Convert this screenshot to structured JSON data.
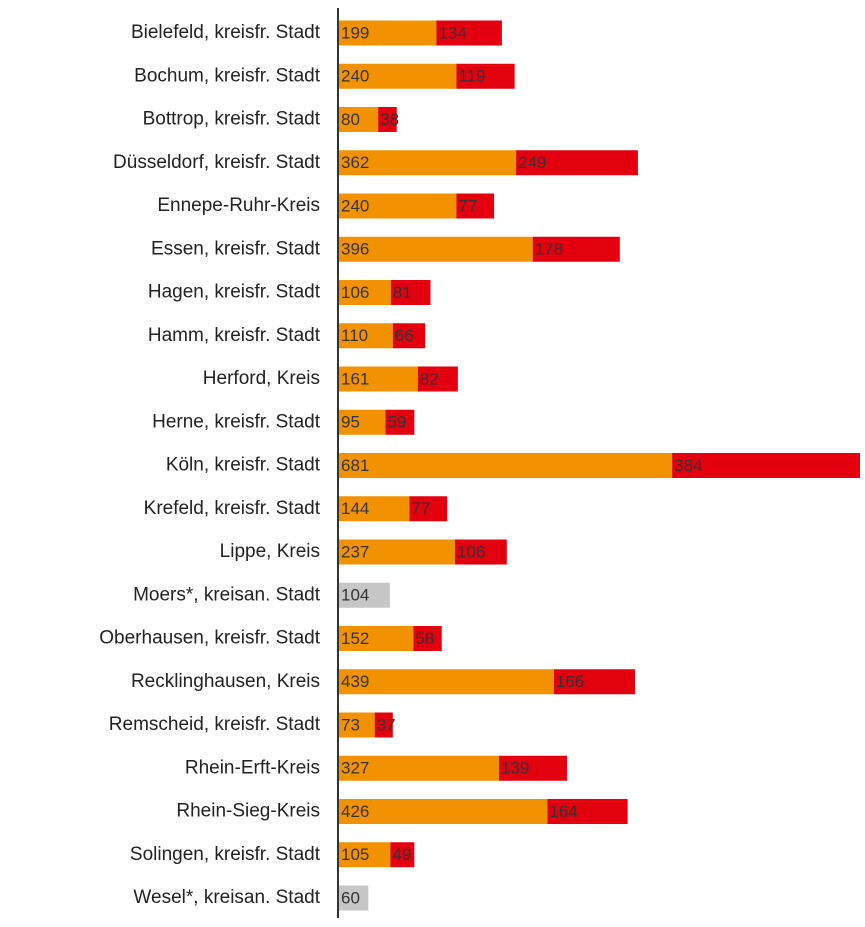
{
  "chart_data": {
    "type": "stacked-bar-horizontal",
    "categories": [
      "Bielefeld, kreisfr. Stadt",
      "Bochum, kreisfr. Stadt",
      "Bottrop, kreisfr. Stadt",
      "Düsseldorf, kreisfr. Stadt",
      "Ennepe-Ruhr-Kreis",
      "Essen, kreisfr. Stadt",
      "Hagen, kreisfr. Stadt",
      "Hamm, kreisfr. Stadt",
      "Herford, Kreis",
      "Herne, kreisfr. Stadt",
      "Köln, kreisfr. Stadt",
      "Krefeld, kreisfr. Stadt",
      "Lippe, Kreis",
      "Moers*, kreisan. Stadt",
      "Oberhausen, kreisfr. Stadt",
      "Recklinghausen, Kreis",
      "Remscheid, kreisfr. Stadt",
      "Rhein-Erft-Kreis",
      "Rhein-Sieg-Kreis",
      "Solingen, kreisfr. Stadt",
      "Wesel*, kreisan. Stadt"
    ],
    "series": [
      {
        "color": "#f39200",
        "values": [
          199,
          240,
          80,
          362,
          240,
          396,
          106,
          110,
          161,
          95,
          681,
          144,
          237,
          null,
          152,
          439,
          73,
          327,
          426,
          105,
          null
        ]
      },
      {
        "color": "#e3000f",
        "values": [
          134,
          119,
          38,
          249,
          77,
          178,
          81,
          66,
          82,
          59,
          384,
          77,
          106,
          null,
          58,
          166,
          37,
          139,
          164,
          49,
          null
        ]
      },
      {
        "color": "#c6c6c6",
        "values": [
          null,
          null,
          null,
          null,
          null,
          null,
          null,
          null,
          null,
          null,
          null,
          null,
          null,
          104,
          null,
          null,
          null,
          null,
          null,
          null,
          60
        ]
      }
    ]
  }
}
